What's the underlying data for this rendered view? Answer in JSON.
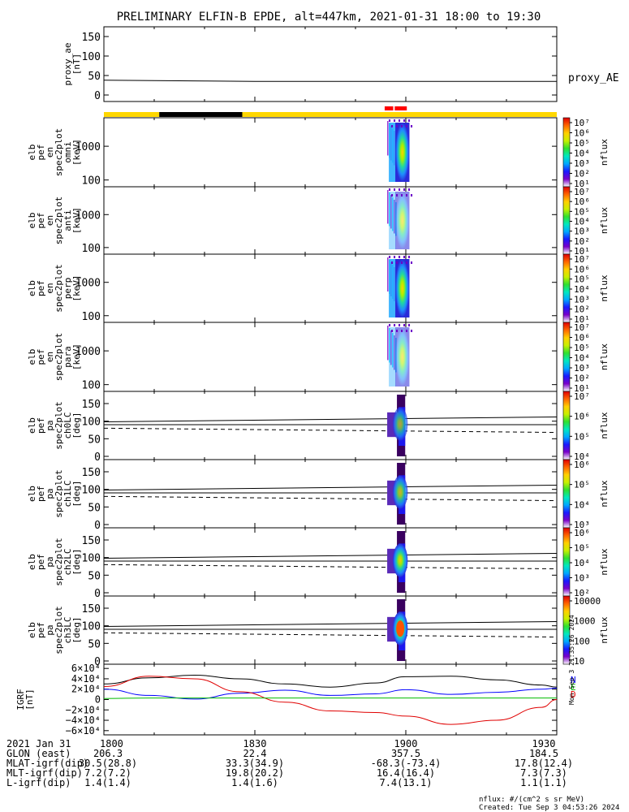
{
  "title": "PRELIMINARY ELFIN-B EPDE, alt=447km, 2021-01-31 18:00 to 19:30",
  "colors": {
    "yellow": "#ffd700",
    "black": "#000000",
    "red": "#ff0000",
    "trace_black": "#000000",
    "trace_blue": "#0000ff",
    "trace_red": "#e00000",
    "trace_green": "#00bb00"
  },
  "colorbar_stops": [
    "#ffffff",
    "#7a00c8",
    "#1a1aff",
    "#00a8ff",
    "#00e8c0",
    "#30e030",
    "#c8f000",
    "#ffd000",
    "#ff6600",
    "#e00000"
  ],
  "chart_data": [
    {
      "id": "proxy_ae",
      "type": "line",
      "ylabel_lines": [
        "proxy_ae",
        "[nT]"
      ],
      "yticks": [
        "150",
        "100",
        "50",
        "0"
      ],
      "ylim": [
        0,
        150
      ],
      "series": [
        {
          "name": "proxy_AE",
          "x": [
            1800,
            1810,
            1820,
            1830,
            1840,
            1850,
            1900,
            1910,
            1920,
            1930
          ],
          "values": [
            38,
            37,
            36,
            35,
            35,
            35,
            35,
            35,
            35,
            35
          ]
        }
      ]
    },
    {
      "id": "state_bar",
      "type": "bar",
      "segments": [
        {
          "from": 1800,
          "to": 1811,
          "color": "yellow"
        },
        {
          "from": 1811,
          "to": 1827.5,
          "color": "black"
        },
        {
          "from": 1827.5,
          "to": 1930,
          "color": "yellow"
        }
      ],
      "markers": [
        {
          "from": 1855.8,
          "to": 1857.5
        },
        {
          "from": 1857.8,
          "to": 1900.2
        }
      ]
    },
    {
      "id": "omni",
      "type": "heatmap",
      "ylabel_lines": [
        "elb",
        "pef",
        "en",
        "spec2plot",
        "omni",
        "[keV]"
      ],
      "yticks": [
        "1000",
        "100"
      ],
      "ylim": [
        63,
        7000
      ],
      "scale": "log",
      "colorbar_label": "nflux",
      "colorbar_ticks": [
        "10⁷",
        "10⁶",
        "10⁵",
        "10⁴",
        "10³",
        "10²",
        "10¹"
      ]
    },
    {
      "id": "anti",
      "type": "heatmap",
      "ylabel_lines": [
        "elb",
        "pef",
        "en",
        "spec2plot",
        "anti",
        "[keV]"
      ],
      "yticks": [
        "1000",
        "100"
      ],
      "ylim": [
        63,
        7000
      ],
      "scale": "log",
      "colorbar_label": "nflux",
      "colorbar_ticks": [
        "10⁷",
        "10⁶",
        "10⁵",
        "10⁴",
        "10³",
        "10²",
        "10¹"
      ]
    },
    {
      "id": "perp",
      "type": "heatmap",
      "ylabel_lines": [
        "elb",
        "pef",
        "en",
        "spec2plot",
        "perp",
        "[keV]"
      ],
      "yticks": [
        "1000",
        "100"
      ],
      "ylim": [
        63,
        7000
      ],
      "scale": "log",
      "colorbar_label": "nflux",
      "colorbar_ticks": [
        "10⁷",
        "10⁶",
        "10⁵",
        "10⁴",
        "10³",
        "10²",
        "10¹"
      ]
    },
    {
      "id": "para",
      "type": "heatmap",
      "ylabel_lines": [
        "elb",
        "pef",
        "en",
        "spec2plot",
        "para",
        "[keV]"
      ],
      "yticks": [
        "1000",
        "100"
      ],
      "ylim": [
        63,
        7000
      ],
      "scale": "log",
      "colorbar_label": "nflux",
      "colorbar_ticks": [
        "10⁷",
        "10⁶",
        "10⁵",
        "10⁴",
        "10³",
        "10²",
        "10¹"
      ]
    },
    {
      "id": "ch0LC",
      "type": "heatmap",
      "ylabel_lines": [
        "elb",
        "pef",
        "pa",
        "spec2plot",
        "ch0LC",
        "[deg]"
      ],
      "yticks": [
        "150",
        "100",
        "50",
        "0"
      ],
      "ylim": [
        0,
        180
      ],
      "colorbar_label": "nflux",
      "colorbar_ticks": [
        "10⁷",
        "10⁶",
        "10⁵",
        "10⁴"
      ]
    },
    {
      "id": "ch1LC",
      "type": "heatmap",
      "ylabel_lines": [
        "elb",
        "pef",
        "pa",
        "spec2plot",
        "ch1LC",
        "[deg]"
      ],
      "yticks": [
        "150",
        "100",
        "50",
        "0"
      ],
      "ylim": [
        0,
        180
      ],
      "colorbar_label": "nflux",
      "colorbar_ticks": [
        "10⁶",
        "10⁵",
        "10⁴",
        "10³"
      ]
    },
    {
      "id": "ch2LC",
      "type": "heatmap",
      "ylabel_lines": [
        "elb",
        "pef",
        "pa",
        "spec2plot",
        "ch2LC",
        "[deg]"
      ],
      "yticks": [
        "150",
        "100",
        "50",
        "0"
      ],
      "ylim": [
        0,
        180
      ],
      "colorbar_label": "nflux",
      "colorbar_ticks": [
        "10⁶",
        "10⁵",
        "10⁴",
        "10³",
        "10²"
      ]
    },
    {
      "id": "ch3LC",
      "type": "heatmap",
      "ylabel_lines": [
        "elb",
        "pef",
        "pa",
        "spec2plot",
        "ch3LC",
        "[deg]"
      ],
      "yticks": [
        "150",
        "100",
        "50",
        "0"
      ],
      "ylim": [
        0,
        180
      ],
      "colorbar_label": "nflux",
      "colorbar_ticks": [
        "10000",
        "1000",
        "100",
        "10"
      ]
    },
    {
      "id": "igrf",
      "type": "line",
      "ylabel_lines": [
        "IGRF",
        "[nT]"
      ],
      "yticks": [
        "6×10⁴",
        "4×10⁴",
        "2×10⁴",
        "0",
        "−2×10⁴",
        "−4×10⁴",
        "−6×10⁴"
      ],
      "ylim": [
        -65000,
        65000
      ],
      "legend": [
        "N",
        "E",
        "D"
      ],
      "series": [
        {
          "name": "N",
          "x": [
            1800,
            1809,
            1818,
            1827,
            1836,
            1845,
            1854,
            1900,
            1909,
            1918,
            1927,
            1930
          ],
          "values": [
            30000,
            42000,
            47000,
            40000,
            30000,
            24000,
            32000,
            44000,
            45000,
            38000,
            28000,
            24000
          ]
        },
        {
          "name": "E",
          "x": [
            1800,
            1809,
            1818,
            1827,
            1836,
            1845,
            1854,
            1900,
            1909,
            1918,
            1927,
            1930
          ],
          "values": [
            20000,
            8000,
            1000,
            12000,
            18000,
            8000,
            11000,
            19000,
            10000,
            14000,
            20000,
            22000
          ]
        },
        {
          "name": "D",
          "x": [
            1800,
            1809,
            1818,
            1827,
            1836,
            1845,
            1854,
            1900,
            1909,
            1918,
            1927,
            1930
          ],
          "values": [
            25000,
            45000,
            40000,
            15000,
            -5000,
            -22000,
            -25000,
            -32000,
            -48000,
            -40000,
            -15000,
            0
          ]
        },
        {
          "name": "",
          "x": [
            1800,
            1809,
            1818,
            1827,
            1836,
            1845,
            1854,
            1900,
            1909,
            1918,
            1927,
            1930
          ],
          "values": [
            2000,
            3000,
            3000,
            3000,
            3000,
            3000,
            3000,
            3000,
            3000,
            3000,
            3000,
            3000
          ]
        }
      ]
    }
  ],
  "proxy_ae_label": "proxy_AE",
  "side_stamp": "Mon Sep  3 21:35:26 2024",
  "footer": {
    "rows": [
      {
        "label": "2021 Jan 31",
        "values": [
          "1800",
          "1830",
          "1900",
          "1930"
        ]
      },
      {
        "label": "GLON (east)",
        "values": [
          "206.3",
          "22.4",
          "357.5",
          "184.5"
        ]
      },
      {
        "label": "MLAT-igrf(dip)",
        "values": [
          "30.5(28.8)",
          "33.3(34.9)",
          "-68.3(-73.4)",
          "17.8(12.4)"
        ]
      },
      {
        "label": "MLT-igrf(dip)",
        "values": [
          "7.2(7.2)",
          "19.8(20.2)",
          "16.4(16.4)",
          "7.3(7.3)"
        ]
      },
      {
        "label": "L-igrf(dip)",
        "values": [
          "1.4(1.4)",
          "1.4(1.6)",
          "7.4(13.1)",
          "1.1(1.1)"
        ]
      }
    ],
    "note_units": "nflux: #/(cm^2 s sr MeV)",
    "note_created": "Created: Tue Sep  3 04:53:26 2024"
  }
}
